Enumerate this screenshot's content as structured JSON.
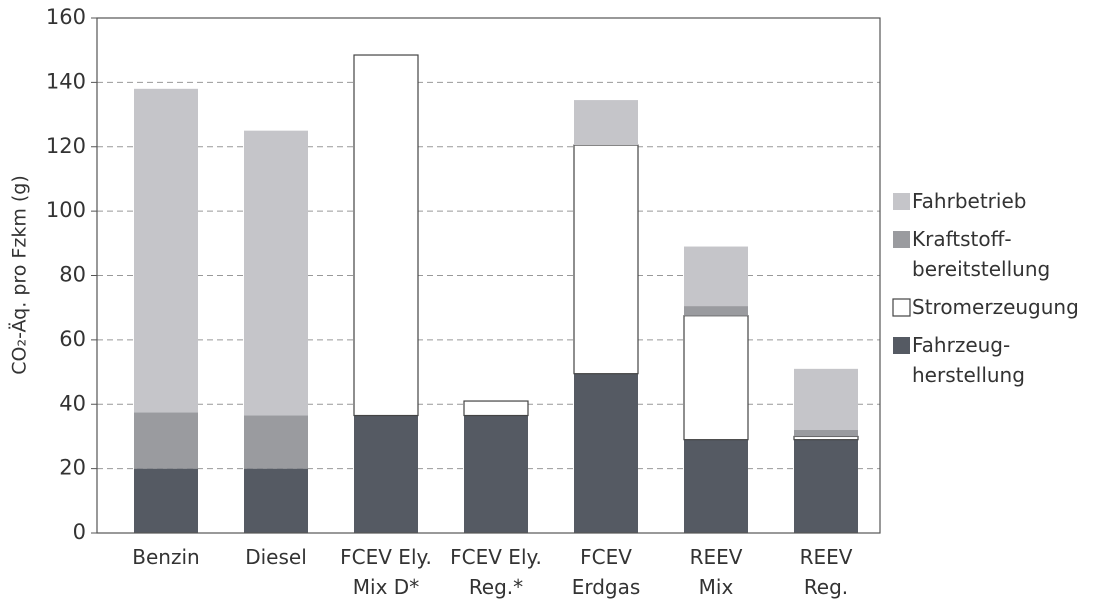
{
  "chart_data": {
    "type": "stacked_bar",
    "ylabel": "CO₂-Äq. pro Fzkm (g)",
    "categories": [
      [
        "Benzin"
      ],
      [
        "Diesel"
      ],
      [
        "FCEV Ely.",
        "Mix D*"
      ],
      [
        "FCEV Ely.",
        "Reg.*"
      ],
      [
        "FCEV",
        "Erdgas"
      ],
      [
        "REEV",
        "Mix"
      ],
      [
        "REEV",
        "Reg."
      ]
    ],
    "series": [
      {
        "name": [
          "Fahrzeug-",
          "herstellung"
        ],
        "color": "#555a63",
        "values": [
          20,
          20,
          36.5,
          36.5,
          49.5,
          29,
          29
        ]
      },
      {
        "name": [
          "Stromerzeugung"
        ],
        "color": "#ffffff",
        "edgecolor": "#444444",
        "values": [
          0,
          0,
          112,
          4.5,
          71,
          38.5,
          1
        ]
      },
      {
        "name": [
          "Kraftstoff-",
          "bereitstellung"
        ],
        "color": "#9a9b9f",
        "values": [
          17.5,
          16.5,
          0,
          0,
          0,
          3,
          2
        ]
      },
      {
        "name": [
          "Fahrbetrieb"
        ],
        "color": "#c5c5c9",
        "values": [
          100.5,
          88.5,
          0,
          0,
          14,
          18.5,
          19
        ]
      }
    ],
    "ylim": [
      0,
      160
    ],
    "yticks": [
      0,
      20,
      40,
      60,
      80,
      100,
      120,
      140,
      160
    ],
    "grid": true,
    "legend": "right"
  }
}
